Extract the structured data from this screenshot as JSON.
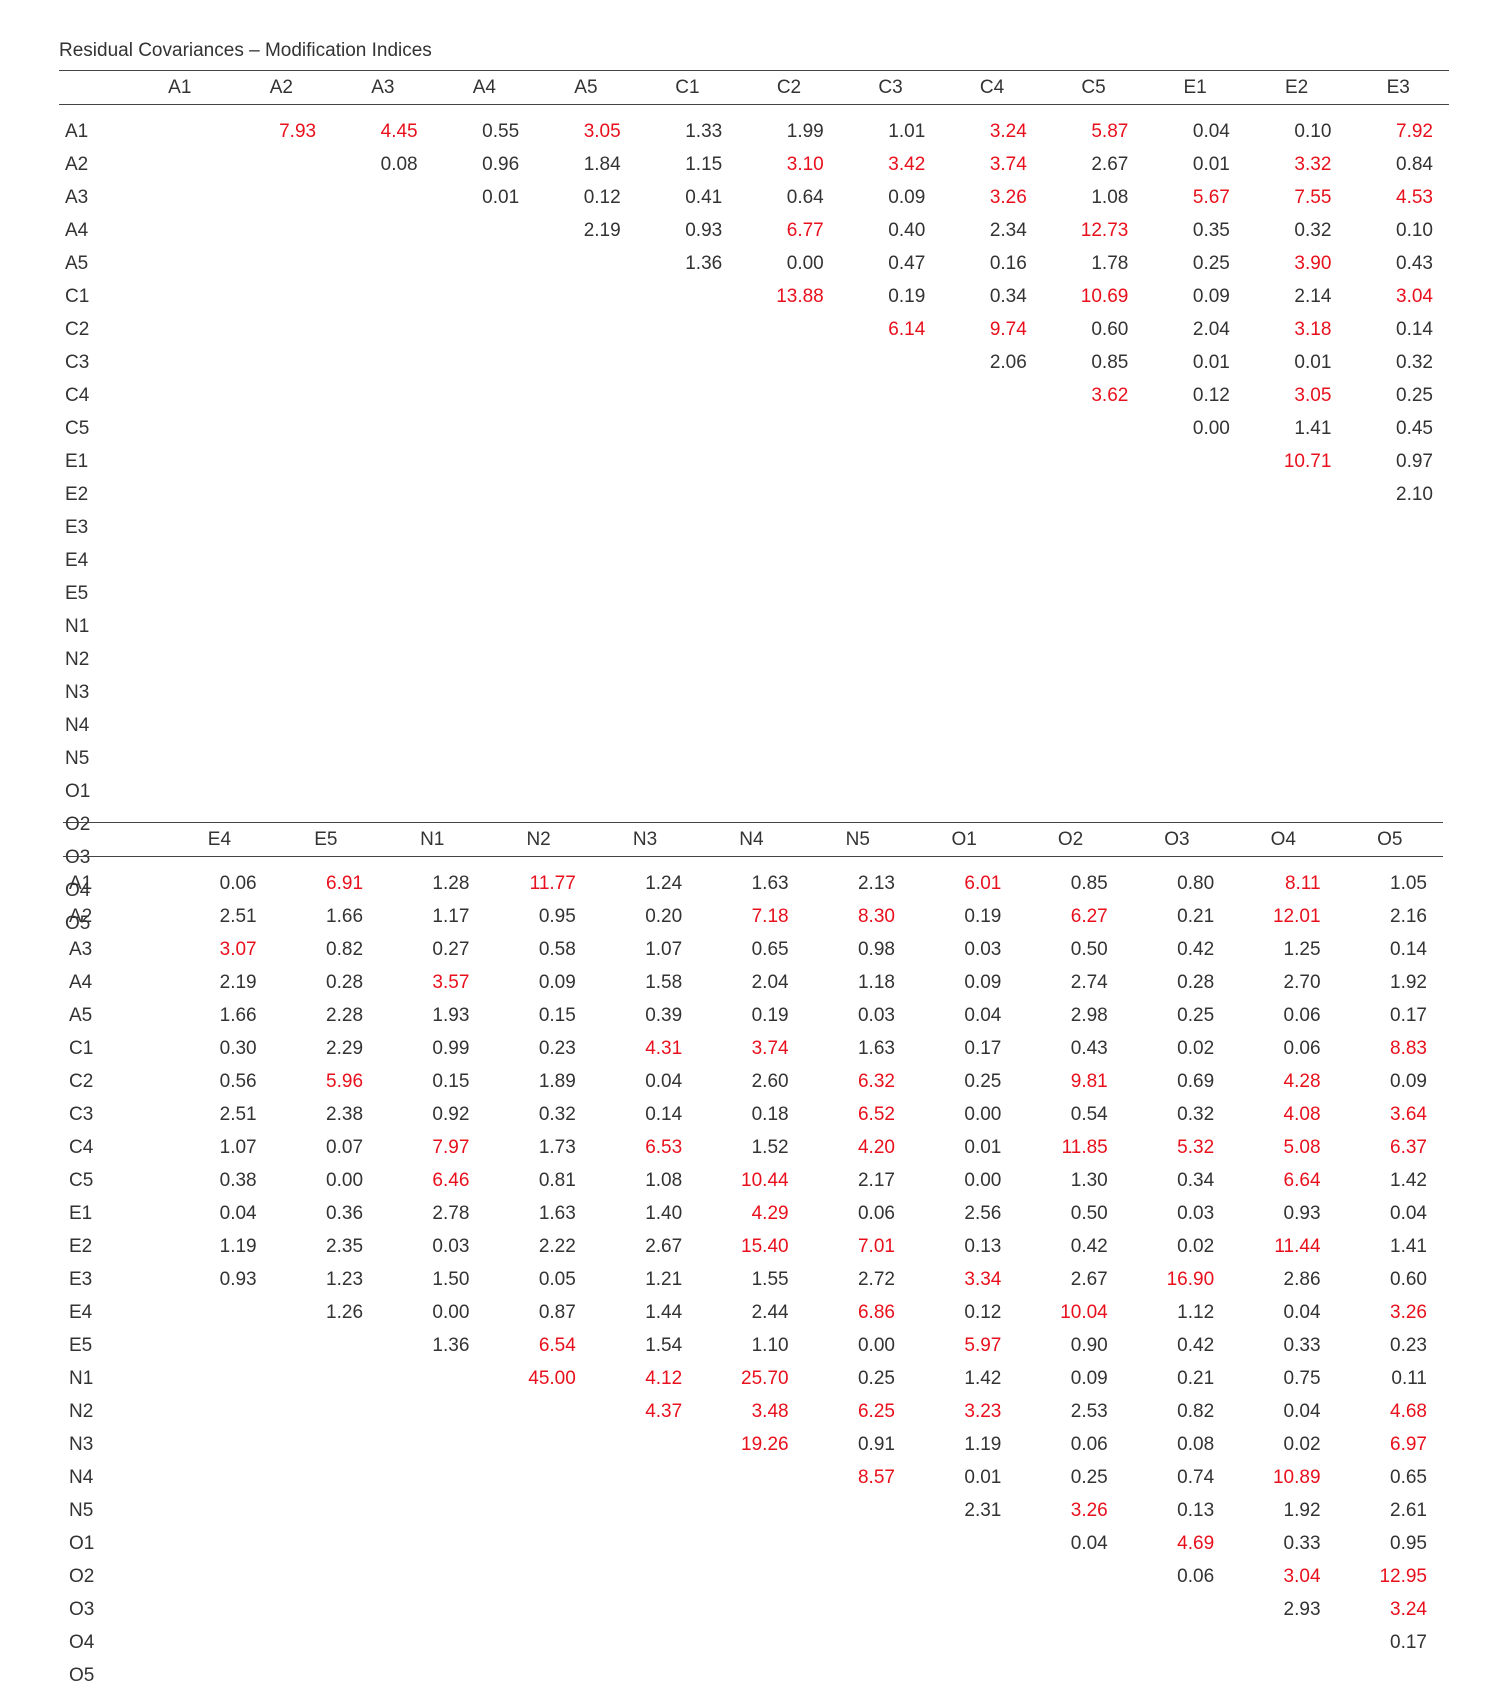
{
  "title": "Residual Covariances – Modification Indices",
  "colors": {
    "text": "#333333",
    "highlight": "#e8101c",
    "rule": "#444444"
  },
  "row_labels": [
    "A1",
    "A2",
    "A3",
    "A4",
    "A5",
    "C1",
    "C2",
    "C3",
    "C4",
    "C5",
    "E1",
    "E2",
    "E3",
    "E4",
    "E5",
    "N1",
    "N2",
    "N3",
    "N4",
    "N5",
    "O1",
    "O2",
    "O3",
    "O4",
    "O5"
  ],
  "tables": [
    {
      "columns": [
        "A1",
        "A2",
        "A3",
        "A4",
        "A5",
        "C1",
        "C2",
        "C3",
        "C4",
        "C5",
        "E1",
        "E2",
        "E3"
      ],
      "rows": [
        [
          "",
          "7.93",
          "4.45",
          "0.55",
          "3.05",
          "1.33",
          "1.99",
          "1.01",
          "3.24",
          "5.87",
          "0.04",
          "0.10",
          "7.92"
        ],
        [
          "",
          "",
          "0.08",
          "0.96",
          "1.84",
          "1.15",
          "3.10",
          "3.42",
          "3.74",
          "2.67",
          "0.01",
          "3.32",
          "0.84"
        ],
        [
          "",
          "",
          "",
          "0.01",
          "0.12",
          "0.41",
          "0.64",
          "0.09",
          "3.26",
          "1.08",
          "5.67",
          "7.55",
          "4.53"
        ],
        [
          "",
          "",
          "",
          "",
          "2.19",
          "0.93",
          "6.77",
          "0.40",
          "2.34",
          "12.73",
          "0.35",
          "0.32",
          "0.10"
        ],
        [
          "",
          "",
          "",
          "",
          "",
          "1.36",
          "0.00",
          "0.47",
          "0.16",
          "1.78",
          "0.25",
          "3.90",
          "0.43"
        ],
        [
          "",
          "",
          "",
          "",
          "",
          "",
          "13.88",
          "0.19",
          "0.34",
          "10.69",
          "0.09",
          "2.14",
          "3.04"
        ],
        [
          "",
          "",
          "",
          "",
          "",
          "",
          "",
          "6.14",
          "9.74",
          "0.60",
          "2.04",
          "3.18",
          "0.14"
        ],
        [
          "",
          "",
          "",
          "",
          "",
          "",
          "",
          "",
          "2.06",
          "0.85",
          "0.01",
          "0.01",
          "0.32"
        ],
        [
          "",
          "",
          "",
          "",
          "",
          "",
          "",
          "",
          "",
          "3.62",
          "0.12",
          "3.05",
          "0.25"
        ],
        [
          "",
          "",
          "",
          "",
          "",
          "",
          "",
          "",
          "",
          "",
          "0.00",
          "1.41",
          "0.45"
        ],
        [
          "",
          "",
          "",
          "",
          "",
          "",
          "",
          "",
          "",
          "",
          "",
          "10.71",
          "0.97"
        ],
        [
          "",
          "",
          "",
          "",
          "",
          "",
          "",
          "",
          "",
          "",
          "",
          "",
          "2.10"
        ],
        [
          "",
          "",
          "",
          "",
          "",
          "",
          "",
          "",
          "",
          "",
          "",
          "",
          ""
        ],
        [
          "",
          "",
          "",
          "",
          "",
          "",
          "",
          "",
          "",
          "",
          "",
          "",
          ""
        ],
        [
          "",
          "",
          "",
          "",
          "",
          "",
          "",
          "",
          "",
          "",
          "",
          "",
          ""
        ],
        [
          "",
          "",
          "",
          "",
          "",
          "",
          "",
          "",
          "",
          "",
          "",
          "",
          ""
        ],
        [
          "",
          "",
          "",
          "",
          "",
          "",
          "",
          "",
          "",
          "",
          "",
          "",
          ""
        ],
        [
          "",
          "",
          "",
          "",
          "",
          "",
          "",
          "",
          "",
          "",
          "",
          "",
          ""
        ],
        [
          "",
          "",
          "",
          "",
          "",
          "",
          "",
          "",
          "",
          "",
          "",
          "",
          ""
        ],
        [
          "",
          "",
          "",
          "",
          "",
          "",
          "",
          "",
          "",
          "",
          "",
          "",
          ""
        ],
        [
          "",
          "",
          "",
          "",
          "",
          "",
          "",
          "",
          "",
          "",
          "",
          "",
          ""
        ],
        [
          "",
          "",
          "",
          "",
          "",
          "",
          "",
          "",
          "",
          "",
          "",
          "",
          ""
        ],
        [
          "",
          "",
          "",
          "",
          "",
          "",
          "",
          "",
          "",
          "",
          "",
          "",
          ""
        ],
        [
          "",
          "",
          "",
          "",
          "",
          "",
          "",
          "",
          "",
          "",
          "",
          "",
          ""
        ],
        [
          "",
          "",
          "",
          "",
          "",
          "",
          "",
          "",
          "",
          "",
          "",
          "",
          ""
        ]
      ],
      "highlighted": [
        [
          0,
          1
        ],
        [
          0,
          2
        ],
        [
          0,
          4
        ],
        [
          0,
          8
        ],
        [
          0,
          9
        ],
        [
          0,
          12
        ],
        [
          1,
          6
        ],
        [
          1,
          7
        ],
        [
          1,
          8
        ],
        [
          1,
          11
        ],
        [
          2,
          8
        ],
        [
          2,
          10
        ],
        [
          2,
          11
        ],
        [
          2,
          12
        ],
        [
          3,
          6
        ],
        [
          3,
          9
        ],
        [
          4,
          11
        ],
        [
          5,
          6
        ],
        [
          5,
          9
        ],
        [
          5,
          12
        ],
        [
          6,
          7
        ],
        [
          6,
          8
        ],
        [
          6,
          11
        ],
        [
          8,
          9
        ],
        [
          8,
          11
        ],
        [
          10,
          11
        ]
      ]
    },
    {
      "columns": [
        "E4",
        "E5",
        "N1",
        "N2",
        "N3",
        "N4",
        "N5",
        "O1",
        "O2",
        "O3",
        "O4",
        "O5"
      ],
      "rows": [
        [
          "0.06",
          "6.91",
          "1.28",
          "11.77",
          "1.24",
          "1.63",
          "2.13",
          "6.01",
          "0.85",
          "0.80",
          "8.11",
          "1.05"
        ],
        [
          "2.51",
          "1.66",
          "1.17",
          "0.95",
          "0.20",
          "7.18",
          "8.30",
          "0.19",
          "6.27",
          "0.21",
          "12.01",
          "2.16"
        ],
        [
          "3.07",
          "0.82",
          "0.27",
          "0.58",
          "1.07",
          "0.65",
          "0.98",
          "0.03",
          "0.50",
          "0.42",
          "1.25",
          "0.14"
        ],
        [
          "2.19",
          "0.28",
          "3.57",
          "0.09",
          "1.58",
          "2.04",
          "1.18",
          "0.09",
          "2.74",
          "0.28",
          "2.70",
          "1.92"
        ],
        [
          "1.66",
          "2.28",
          "1.93",
          "0.15",
          "0.39",
          "0.19",
          "0.03",
          "0.04",
          "2.98",
          "0.25",
          "0.06",
          "0.17"
        ],
        [
          "0.30",
          "2.29",
          "0.99",
          "0.23",
          "4.31",
          "3.74",
          "1.63",
          "0.17",
          "0.43",
          "0.02",
          "0.06",
          "8.83"
        ],
        [
          "0.56",
          "5.96",
          "0.15",
          "1.89",
          "0.04",
          "2.60",
          "6.32",
          "0.25",
          "9.81",
          "0.69",
          "4.28",
          "0.09"
        ],
        [
          "2.51",
          "2.38",
          "0.92",
          "0.32",
          "0.14",
          "0.18",
          "6.52",
          "0.00",
          "0.54",
          "0.32",
          "4.08",
          "3.64"
        ],
        [
          "1.07",
          "0.07",
          "7.97",
          "1.73",
          "6.53",
          "1.52",
          "4.20",
          "0.01",
          "11.85",
          "5.32",
          "5.08",
          "6.37"
        ],
        [
          "0.38",
          "0.00",
          "6.46",
          "0.81",
          "1.08",
          "10.44",
          "2.17",
          "0.00",
          "1.30",
          "0.34",
          "6.64",
          "1.42"
        ],
        [
          "0.04",
          "0.36",
          "2.78",
          "1.63",
          "1.40",
          "4.29",
          "0.06",
          "2.56",
          "0.50",
          "0.03",
          "0.93",
          "0.04"
        ],
        [
          "1.19",
          "2.35",
          "0.03",
          "2.22",
          "2.67",
          "15.40",
          "7.01",
          "0.13",
          "0.42",
          "0.02",
          "11.44",
          "1.41"
        ],
        [
          "0.93",
          "1.23",
          "1.50",
          "0.05",
          "1.21",
          "1.55",
          "2.72",
          "3.34",
          "2.67",
          "16.90",
          "2.86",
          "0.60"
        ],
        [
          "",
          "1.26",
          "0.00",
          "0.87",
          "1.44",
          "2.44",
          "6.86",
          "0.12",
          "10.04",
          "1.12",
          "0.04",
          "3.26"
        ],
        [
          "",
          "",
          "1.36",
          "6.54",
          "1.54",
          "1.10",
          "0.00",
          "5.97",
          "0.90",
          "0.42",
          "0.33",
          "0.23"
        ],
        [
          "",
          "",
          "",
          "45.00",
          "4.12",
          "25.70",
          "0.25",
          "1.42",
          "0.09",
          "0.21",
          "0.75",
          "0.11"
        ],
        [
          "",
          "",
          "",
          "",
          "4.37",
          "3.48",
          "6.25",
          "3.23",
          "2.53",
          "0.82",
          "0.04",
          "4.68"
        ],
        [
          "",
          "",
          "",
          "",
          "",
          "19.26",
          "0.91",
          "1.19",
          "0.06",
          "0.08",
          "0.02",
          "6.97"
        ],
        [
          "",
          "",
          "",
          "",
          "",
          "",
          "8.57",
          "0.01",
          "0.25",
          "0.74",
          "10.89",
          "0.65"
        ],
        [
          "",
          "",
          "",
          "",
          "",
          "",
          "",
          "2.31",
          "3.26",
          "0.13",
          "1.92",
          "2.61"
        ],
        [
          "",
          "",
          "",
          "",
          "",
          "",
          "",
          "",
          "0.04",
          "4.69",
          "0.33",
          "0.95"
        ],
        [
          "",
          "",
          "",
          "",
          "",
          "",
          "",
          "",
          "",
          "0.06",
          "3.04",
          "12.95"
        ],
        [
          "",
          "",
          "",
          "",
          "",
          "",
          "",
          "",
          "",
          "",
          "2.93",
          "3.24"
        ],
        [
          "",
          "",
          "",
          "",
          "",
          "",
          "",
          "",
          "",
          "",
          "",
          "0.17"
        ],
        [
          "",
          "",
          "",
          "",
          "",
          "",
          "",
          "",
          "",
          "",
          "",
          ""
        ]
      ],
      "highlighted": [
        [
          0,
          1
        ],
        [
          0,
          3
        ],
        [
          0,
          7
        ],
        [
          0,
          10
        ],
        [
          1,
          5
        ],
        [
          1,
          6
        ],
        [
          1,
          8
        ],
        [
          1,
          10
        ],
        [
          2,
          0
        ],
        [
          3,
          2
        ],
        [
          5,
          4
        ],
        [
          5,
          5
        ],
        [
          5,
          11
        ],
        [
          6,
          1
        ],
        [
          6,
          6
        ],
        [
          6,
          8
        ],
        [
          6,
          10
        ],
        [
          7,
          6
        ],
        [
          7,
          10
        ],
        [
          7,
          11
        ],
        [
          8,
          2
        ],
        [
          8,
          4
        ],
        [
          8,
          6
        ],
        [
          8,
          8
        ],
        [
          8,
          9
        ],
        [
          8,
          10
        ],
        [
          8,
          11
        ],
        [
          9,
          2
        ],
        [
          9,
          5
        ],
        [
          9,
          10
        ],
        [
          10,
          5
        ],
        [
          11,
          5
        ],
        [
          11,
          6
        ],
        [
          11,
          10
        ],
        [
          12,
          7
        ],
        [
          12,
          9
        ],
        [
          13,
          6
        ],
        [
          13,
          8
        ],
        [
          13,
          11
        ],
        [
          14,
          3
        ],
        [
          14,
          7
        ],
        [
          15,
          3
        ],
        [
          15,
          4
        ],
        [
          15,
          5
        ],
        [
          16,
          4
        ],
        [
          16,
          5
        ],
        [
          16,
          6
        ],
        [
          16,
          7
        ],
        [
          16,
          11
        ],
        [
          17,
          5
        ],
        [
          17,
          11
        ],
        [
          18,
          6
        ],
        [
          18,
          10
        ],
        [
          19,
          8
        ],
        [
          20,
          9
        ],
        [
          21,
          10
        ],
        [
          21,
          11
        ],
        [
          22,
          11
        ]
      ]
    }
  ]
}
